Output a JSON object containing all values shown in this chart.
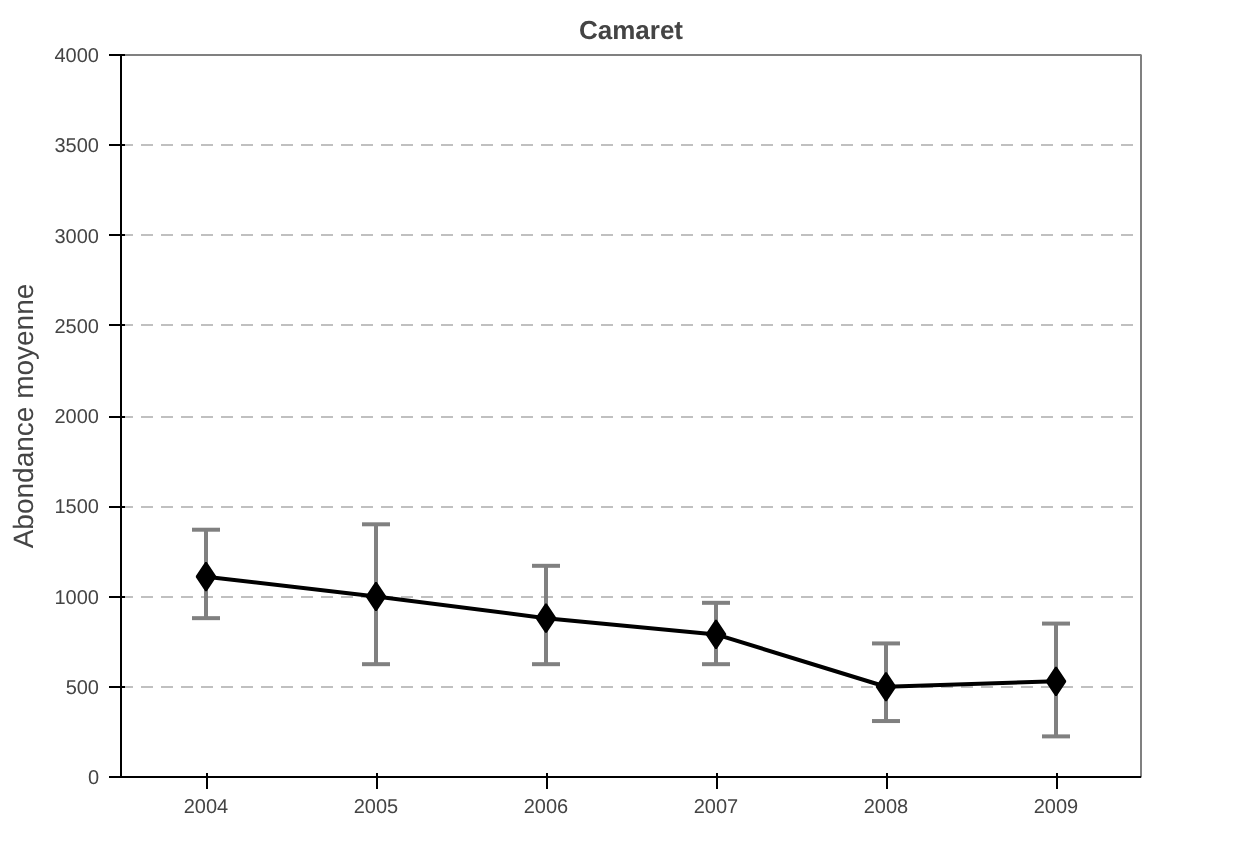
{
  "chart_data": {
    "type": "line",
    "title": "Camaret",
    "ylabel": "Abondance moyenne",
    "categories": [
      "2004",
      "2005",
      "2006",
      "2007",
      "2008",
      "2009"
    ],
    "series": [
      {
        "color": "#000000",
        "values": [
          1110,
          1000,
          880,
          790,
          500,
          530
        ],
        "errors": [
          [
            880,
            1370
          ],
          [
            625,
            1400
          ],
          [
            625,
            1170
          ],
          [
            625,
            965
          ],
          [
            310,
            740
          ],
          [
            225,
            850
          ]
        ]
      }
    ],
    "ylim": [
      0,
      4000
    ],
    "yticks": [
      0,
      500,
      1000,
      1500,
      2000,
      2500,
      3000,
      3500,
      4000
    ],
    "grid": "y",
    "marker": "diamond",
    "line_style": "solid"
  }
}
